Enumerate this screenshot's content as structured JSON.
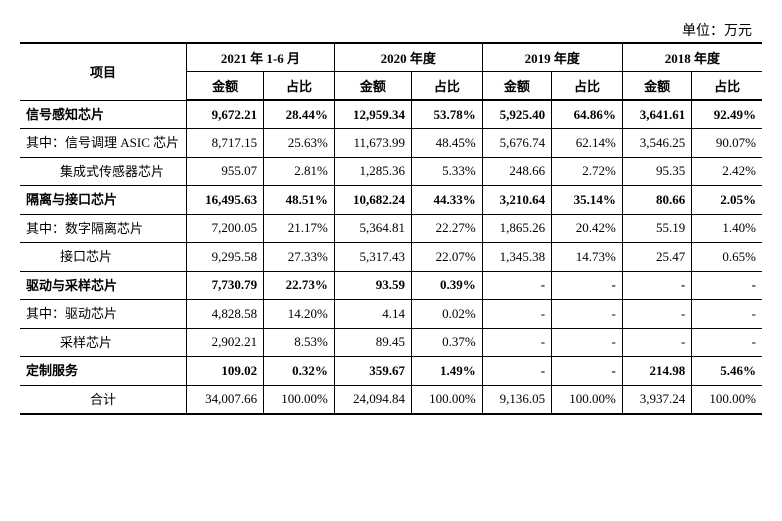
{
  "unit_label": "单位：万元",
  "header": {
    "project": "项目",
    "periods": [
      "2021 年 1-6 月",
      "2020 年度",
      "2019 年度",
      "2018 年度"
    ],
    "sub": {
      "amount": "金额",
      "ratio": "占比"
    }
  },
  "rows": [
    {
      "name": "r1",
      "label": "信号感知芯片",
      "bold": true,
      "indent": 0,
      "data": [
        [
          "9,672.21",
          "28.44%"
        ],
        [
          "12,959.34",
          "53.78%"
        ],
        [
          "5,925.40",
          "64.86%"
        ],
        [
          "3,641.61",
          "92.49%"
        ]
      ]
    },
    {
      "name": "r2",
      "label": "其中：信号调理 ASIC 芯片",
      "bold": false,
      "indent": 1,
      "multiline": true,
      "data": [
        [
          "8,717.15",
          "25.63%"
        ],
        [
          "11,673.99",
          "48.45%"
        ],
        [
          "5,676.74",
          "62.14%"
        ],
        [
          "3,546.25",
          "90.07%"
        ]
      ]
    },
    {
      "name": "r3",
      "label": "集成式传感器芯片",
      "bold": false,
      "indent": 2,
      "multiline": true,
      "data": [
        [
          "955.07",
          "2.81%"
        ],
        [
          "1,285.36",
          "5.33%"
        ],
        [
          "248.66",
          "2.72%"
        ],
        [
          "95.35",
          "2.42%"
        ]
      ]
    },
    {
      "name": "r4",
      "label": "隔离与接口芯片",
      "bold": true,
      "indent": 0,
      "data": [
        [
          "16,495.63",
          "48.51%"
        ],
        [
          "10,682.24",
          "44.33%"
        ],
        [
          "3,210.64",
          "35.14%"
        ],
        [
          "80.66",
          "2.05%"
        ]
      ]
    },
    {
      "name": "r5",
      "label": "其中：数字隔离芯片",
      "bold": false,
      "indent": 1,
      "multiline": true,
      "data": [
        [
          "7,200.05",
          "21.17%"
        ],
        [
          "5,364.81",
          "22.27%"
        ],
        [
          "1,865.26",
          "20.42%"
        ],
        [
          "55.19",
          "1.40%"
        ]
      ]
    },
    {
      "name": "r6",
      "label": "接口芯片",
      "bold": false,
      "indent": 2,
      "data": [
        [
          "9,295.58",
          "27.33%"
        ],
        [
          "5,317.43",
          "22.07%"
        ],
        [
          "1,345.38",
          "14.73%"
        ],
        [
          "25.47",
          "0.65%"
        ]
      ]
    },
    {
      "name": "r7",
      "label": "驱动与采样芯片",
      "bold": true,
      "indent": 0,
      "data": [
        [
          "7,730.79",
          "22.73%"
        ],
        [
          "93.59",
          "0.39%"
        ],
        [
          "-",
          "-"
        ],
        [
          "-",
          "-"
        ]
      ]
    },
    {
      "name": "r8",
      "label": "其中：驱动芯片",
      "bold": false,
      "indent": 1,
      "data": [
        [
          "4,828.58",
          "14.20%"
        ],
        [
          "4.14",
          "0.02%"
        ],
        [
          "-",
          "-"
        ],
        [
          "-",
          "-"
        ]
      ]
    },
    {
      "name": "r9",
      "label": "采样芯片",
      "bold": false,
      "indent": 2,
      "data": [
        [
          "2,902.21",
          "8.53%"
        ],
        [
          "89.45",
          "0.37%"
        ],
        [
          "-",
          "-"
        ],
        [
          "-",
          "-"
        ]
      ]
    },
    {
      "name": "r10",
      "label": "定制服务",
      "bold": true,
      "indent": 0,
      "data": [
        [
          "109.02",
          "0.32%"
        ],
        [
          "359.67",
          "1.49%"
        ],
        [
          "-",
          "-"
        ],
        [
          "214.98",
          "5.46%"
        ]
      ]
    },
    {
      "name": "r11",
      "label": "合计",
      "bold": false,
      "indent": 0,
      "center_label": true,
      "data": [
        [
          "34,007.66",
          "100.00%"
        ],
        [
          "24,094.84",
          "100.00%"
        ],
        [
          "9,136.05",
          "100.00%"
        ],
        [
          "3,937.24",
          "100.00%"
        ]
      ]
    }
  ],
  "colors": {
    "border": "#000000",
    "bg": "#ffffff",
    "text": "#000000"
  }
}
